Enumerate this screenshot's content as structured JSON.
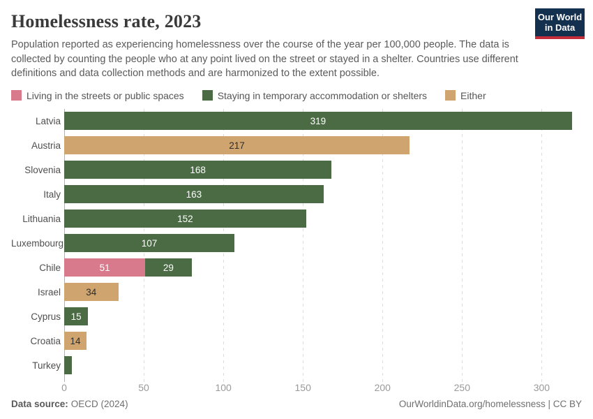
{
  "header": {
    "title": "Homelessness rate, 2023",
    "subtitle": "Population reported as experiencing homelessness over the course of the year per 100,000 people. The data is collected by counting the people who at any point lived on the street or stayed in a shelter. Countries use different definitions and data collection methods and are harmonized to the extent possible.",
    "logo": {
      "line1": "Our World",
      "line2": "in Data",
      "bg_color": "#13304f",
      "accent_color": "#c62d3a"
    }
  },
  "chart_data": {
    "type": "bar",
    "orientation": "horizontal",
    "stacked": true,
    "title": "Homelessness rate, 2023",
    "xlabel": "",
    "ylabel": "",
    "xlim": [
      0,
      320
    ],
    "grid": true,
    "legend_position": "top",
    "legend": [
      {
        "key": "street",
        "label": "Living in the streets or public spaces",
        "color": "#d8798c"
      },
      {
        "key": "shelter",
        "label": "Staying in temporary accommodation or shelters",
        "color": "#4b6b44"
      },
      {
        "key": "either",
        "label": "Either",
        "color": "#cfa46f"
      }
    ],
    "rows": [
      {
        "country": "Latvia",
        "segments": [
          {
            "key": "shelter",
            "value": 319,
            "label": "319"
          }
        ]
      },
      {
        "country": "Austria",
        "segments": [
          {
            "key": "either",
            "value": 217,
            "label": "217"
          }
        ]
      },
      {
        "country": "Slovenia",
        "segments": [
          {
            "key": "shelter",
            "value": 168,
            "label": "168"
          }
        ]
      },
      {
        "country": "Italy",
        "segments": [
          {
            "key": "shelter",
            "value": 163,
            "label": "163"
          }
        ]
      },
      {
        "country": "Lithuania",
        "segments": [
          {
            "key": "shelter",
            "value": 152,
            "label": "152"
          }
        ]
      },
      {
        "country": "Luxembourg",
        "segments": [
          {
            "key": "shelter",
            "value": 107,
            "label": "107"
          }
        ]
      },
      {
        "country": "Chile",
        "segments": [
          {
            "key": "street",
            "value": 51,
            "label": "51"
          },
          {
            "key": "shelter",
            "value": 29,
            "label": "29"
          }
        ]
      },
      {
        "country": "Israel",
        "segments": [
          {
            "key": "either",
            "value": 34,
            "label": "34"
          }
        ]
      },
      {
        "country": "Cyprus",
        "segments": [
          {
            "key": "shelter",
            "value": 15,
            "label": "15"
          }
        ]
      },
      {
        "country": "Croatia",
        "segments": [
          {
            "key": "either",
            "value": 14,
            "label": "14"
          }
        ]
      },
      {
        "country": "Turkey",
        "segments": [
          {
            "key": "shelter",
            "value": 5,
            "label": ""
          }
        ]
      }
    ],
    "x_axis": {
      "ticks": [
        0,
        50,
        100,
        150,
        200,
        250,
        300
      ],
      "max": 320
    }
  },
  "footer": {
    "source_label": "Data source:",
    "source_value": "OECD (2024)",
    "credit": "OurWorldinData.org/homelessness | CC BY"
  }
}
